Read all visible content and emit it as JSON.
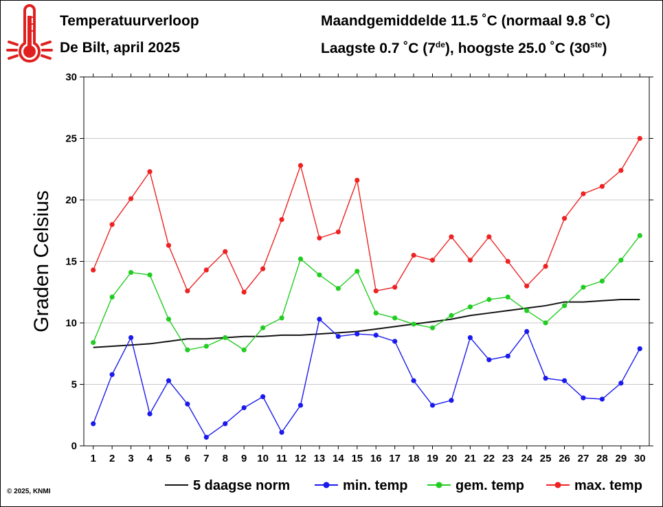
{
  "header": {
    "title": "Temperatuurverloop",
    "subtitle": "De Bilt, april 2025",
    "monthly_avg": "Maandgemiddelde 11.5 ˚C (normaal 9.8 ˚C)",
    "minmax_pre": "Laagste 0.7 ˚C (7",
    "minmax_sup1": "de",
    "minmax_mid": "), hoogste 25.0 ˚C (30",
    "minmax_sup2": "ste",
    "minmax_post": ")"
  },
  "footer": {
    "copyright": "© 2025, KNMI"
  },
  "icon": "thermometer-icon",
  "colors": {
    "max": "#ee2222",
    "gem": "#22cc22",
    "min": "#1a1aee",
    "norm": "#111111",
    "icon": "#e02020"
  },
  "chart_data": {
    "type": "line",
    "ylabel": "Graden Celsius",
    "xlabel": "",
    "ylim": [
      0,
      30
    ],
    "yticks": [
      0,
      5,
      10,
      15,
      20,
      25,
      30
    ],
    "grid": true,
    "legend_position": "bottom",
    "x": [
      1,
      2,
      3,
      4,
      5,
      6,
      7,
      8,
      9,
      10,
      11,
      12,
      13,
      14,
      15,
      16,
      17,
      18,
      19,
      20,
      21,
      22,
      23,
      24,
      25,
      26,
      27,
      28,
      29,
      30
    ],
    "series": [
      {
        "name": "5 daagse norm",
        "key": "norm",
        "markers": false,
        "values": [
          8.0,
          8.1,
          8.2,
          8.3,
          8.5,
          8.7,
          8.7,
          8.8,
          8.9,
          8.9,
          9.0,
          9.0,
          9.1,
          9.2,
          9.3,
          9.5,
          9.7,
          9.9,
          10.1,
          10.3,
          10.6,
          10.8,
          11.0,
          11.2,
          11.4,
          11.7,
          11.7,
          11.8,
          11.9,
          11.9
        ]
      },
      {
        "name": "min. temp",
        "key": "min",
        "markers": true,
        "values": [
          1.8,
          5.8,
          8.8,
          2.6,
          5.3,
          3.4,
          0.7,
          1.8,
          3.1,
          4.0,
          1.1,
          3.3,
          10.3,
          8.9,
          9.1,
          9.0,
          8.5,
          5.3,
          3.3,
          3.7,
          8.8,
          7.0,
          7.3,
          9.3,
          5.5,
          5.3,
          3.9,
          3.8,
          5.1,
          7.9
        ]
      },
      {
        "name": "gem. temp",
        "key": "gem",
        "markers": true,
        "values": [
          8.4,
          12.1,
          14.1,
          13.9,
          10.3,
          7.8,
          8.1,
          8.8,
          7.8,
          9.6,
          10.4,
          15.2,
          13.9,
          12.8,
          14.2,
          10.8,
          10.4,
          9.9,
          9.6,
          10.6,
          11.3,
          11.9,
          12.1,
          11.0,
          10.0,
          11.4,
          12.9,
          13.4,
          15.1,
          17.1
        ]
      },
      {
        "name": "max. temp",
        "key": "max",
        "markers": true,
        "values": [
          14.3,
          18.0,
          20.1,
          22.3,
          16.3,
          12.6,
          14.3,
          15.8,
          12.5,
          14.4,
          18.4,
          22.8,
          16.9,
          17.4,
          21.6,
          12.6,
          12.9,
          15.5,
          15.1,
          17.0,
          15.1,
          17.0,
          15.0,
          13.0,
          14.6,
          18.5,
          20.5,
          21.1,
          22.4,
          25.0
        ]
      }
    ]
  }
}
